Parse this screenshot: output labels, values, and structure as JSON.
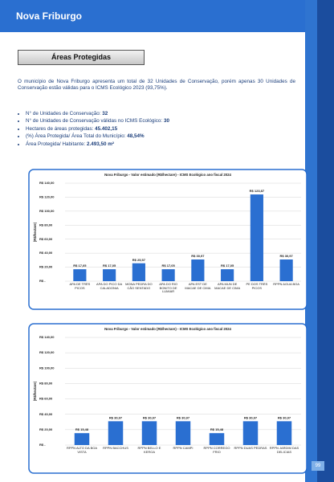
{
  "header": {
    "title": "Nova Friburgo"
  },
  "section_title": "Áreas Protegidas",
  "paragraph": "O município de Nova Friburgo apresenta um total de 32 Unidades de Conservação, porém apenas 30 Unidades de Conservação estão válidas para o ICMS Ecológico 2023 (93,75%).",
  "bullets": [
    {
      "label": "N° de Unidades de Conservação: ",
      "value": "32"
    },
    {
      "label": "N° de Unidades de Conservação válidas no ICMS Ecológico: ",
      "value": "30"
    },
    {
      "label": "Hectares de áreas protegidas: ",
      "value": "45.402,15"
    },
    {
      "label": "(%) Área Protegida/ Área Total do Município: ",
      "value": "48,54%"
    },
    {
      "label": "Área Protegida/ Habitante: ",
      "value": "2.493,50 m²"
    }
  ],
  "chart_data": [
    {
      "type": "bar",
      "title": "Nova Friburgo - Valor estimado (R$/hectare) - ICMS Ecológico ano fiscal 2024",
      "y_label": "(R$/hectare)",
      "categories": [
        "APA DE TRÊS PICOS",
        "APA DO PICO DA CALADONIA",
        "MONA PEDRA DO CÃO SENTADO",
        "APA DO RIO BONITO DE LUMIAR",
        "APA EST DE MACAE DE CIMA",
        "APA MUN DE MACAE DE CIMA",
        "PE DOS TRÊS PICOS",
        "RPPN AGUA BOA"
      ],
      "values": [
        17.05,
        17.05,
        25.57,
        17.05,
        30.97,
        17.05,
        123.87,
        30.97
      ],
      "value_labels": [
        "R$ 17,05",
        "R$ 17,05",
        "R$ 25,57",
        "R$ 17,05",
        "R$ 30,97",
        "R$ 17,05",
        "R$ 123,87",
        "R$ 30,97"
      ],
      "color": "#2a6fd1",
      "grid": true,
      "ylim": [
        0,
        140
      ],
      "yticks": [
        {
          "value": 0,
          "label": "R$ -"
        },
        {
          "value": 20,
          "label": "R$ 20,00"
        },
        {
          "value": 40,
          "label": "R$ 40,00"
        },
        {
          "value": 60,
          "label": "R$ 60,00"
        },
        {
          "value": 80,
          "label": "R$ 80,00"
        },
        {
          "value": 100,
          "label": "R$ 100,00"
        },
        {
          "value": 120,
          "label": "R$ 120,00"
        },
        {
          "value": 140,
          "label": "R$ 140,00"
        }
      ]
    },
    {
      "type": "bar",
      "title": "Nova Friburgo - Valor estimado (R$/hectare) - ICMS Ecológico ano fiscal 2024",
      "y_label": "(R$/hectare)",
      "categories": [
        "RPPN ALTO DA BOA VISTA",
        "RPPN BACCHUS",
        "RPPN BELLO E KEROA",
        "RPPN CAMPI",
        "RPPN CORREGO FRIO",
        "RPPN DUAS PEDRAS",
        "RPPN JARDIM DAS DELICIAS"
      ],
      "values": [
        15.48,
        30.97,
        30.97,
        30.97,
        15.48,
        30.97,
        30.97
      ],
      "value_labels": [
        "R$ 15,48",
        "R$ 30,97",
        "R$ 30,97",
        "R$ 30,97",
        "R$ 15,48",
        "R$ 30,97",
        "R$ 30,97"
      ],
      "color": "#2a6fd1",
      "grid": true,
      "ylim": [
        0,
        140
      ],
      "yticks": [
        {
          "value": 0,
          "label": "R$ -"
        },
        {
          "value": 20,
          "label": "R$ 20,00"
        },
        {
          "value": 40,
          "label": "R$ 40,00"
        },
        {
          "value": 60,
          "label": "R$ 60,00"
        },
        {
          "value": 80,
          "label": "R$ 80,00"
        },
        {
          "value": 100,
          "label": "R$ 100,00"
        },
        {
          "value": 120,
          "label": "R$ 120,00"
        },
        {
          "value": 140,
          "label": "R$ 140,00"
        }
      ]
    }
  ],
  "page_number": "99"
}
